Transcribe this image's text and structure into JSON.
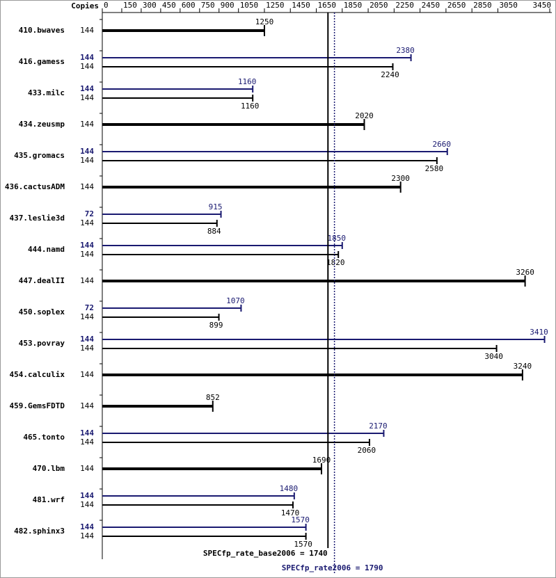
{
  "chart_data": {
    "type": "bar",
    "copies_header": "Copies",
    "xlim": [
      0,
      3450
    ],
    "xticks": [
      0,
      150,
      300,
      450,
      600,
      750,
      900,
      1050,
      1250,
      1450,
      1650,
      1850,
      2050,
      2250,
      2450,
      2650,
      2850,
      3050,
      3450
    ],
    "categories": [
      "410.bwaves",
      "416.gamess",
      "433.milc",
      "434.zeusmp",
      "435.gromacs",
      "436.cactusADM",
      "437.leslie3d",
      "444.namd",
      "447.dealII",
      "450.soplex",
      "453.povray",
      "454.calculix",
      "459.GemsFDTD",
      "465.tonto",
      "470.lbm",
      "481.wrf",
      "482.sphinx3"
    ],
    "base": {
      "color": "#000000",
      "copies": [
        144,
        144,
        144,
        144,
        144,
        144,
        144,
        144,
        144,
        144,
        144,
        144,
        144,
        144,
        144,
        144,
        144
      ],
      "values": [
        1250,
        2240,
        1160,
        2020,
        2580,
        2300,
        884,
        1820,
        3260,
        899,
        3040,
        3240,
        852,
        2060,
        1690,
        1470,
        1570
      ]
    },
    "peak": {
      "color": "#191970",
      "copies": [
        null,
        144,
        144,
        null,
        144,
        null,
        72,
        144,
        null,
        72,
        144,
        null,
        null,
        144,
        null,
        144,
        144
      ],
      "values": [
        null,
        2380,
        1160,
        null,
        2660,
        null,
        915,
        1850,
        null,
        1070,
        3410,
        null,
        null,
        2170,
        null,
        1480,
        1570
      ]
    },
    "reference_lines": [
      {
        "label": "SPECfp_rate_base2006 = 1740",
        "value": 1740,
        "color": "#000000",
        "dashed": false
      },
      {
        "label": "SPECfp_rate2006 = 1790",
        "value": 1790,
        "color": "#191970",
        "dashed": true
      }
    ]
  }
}
